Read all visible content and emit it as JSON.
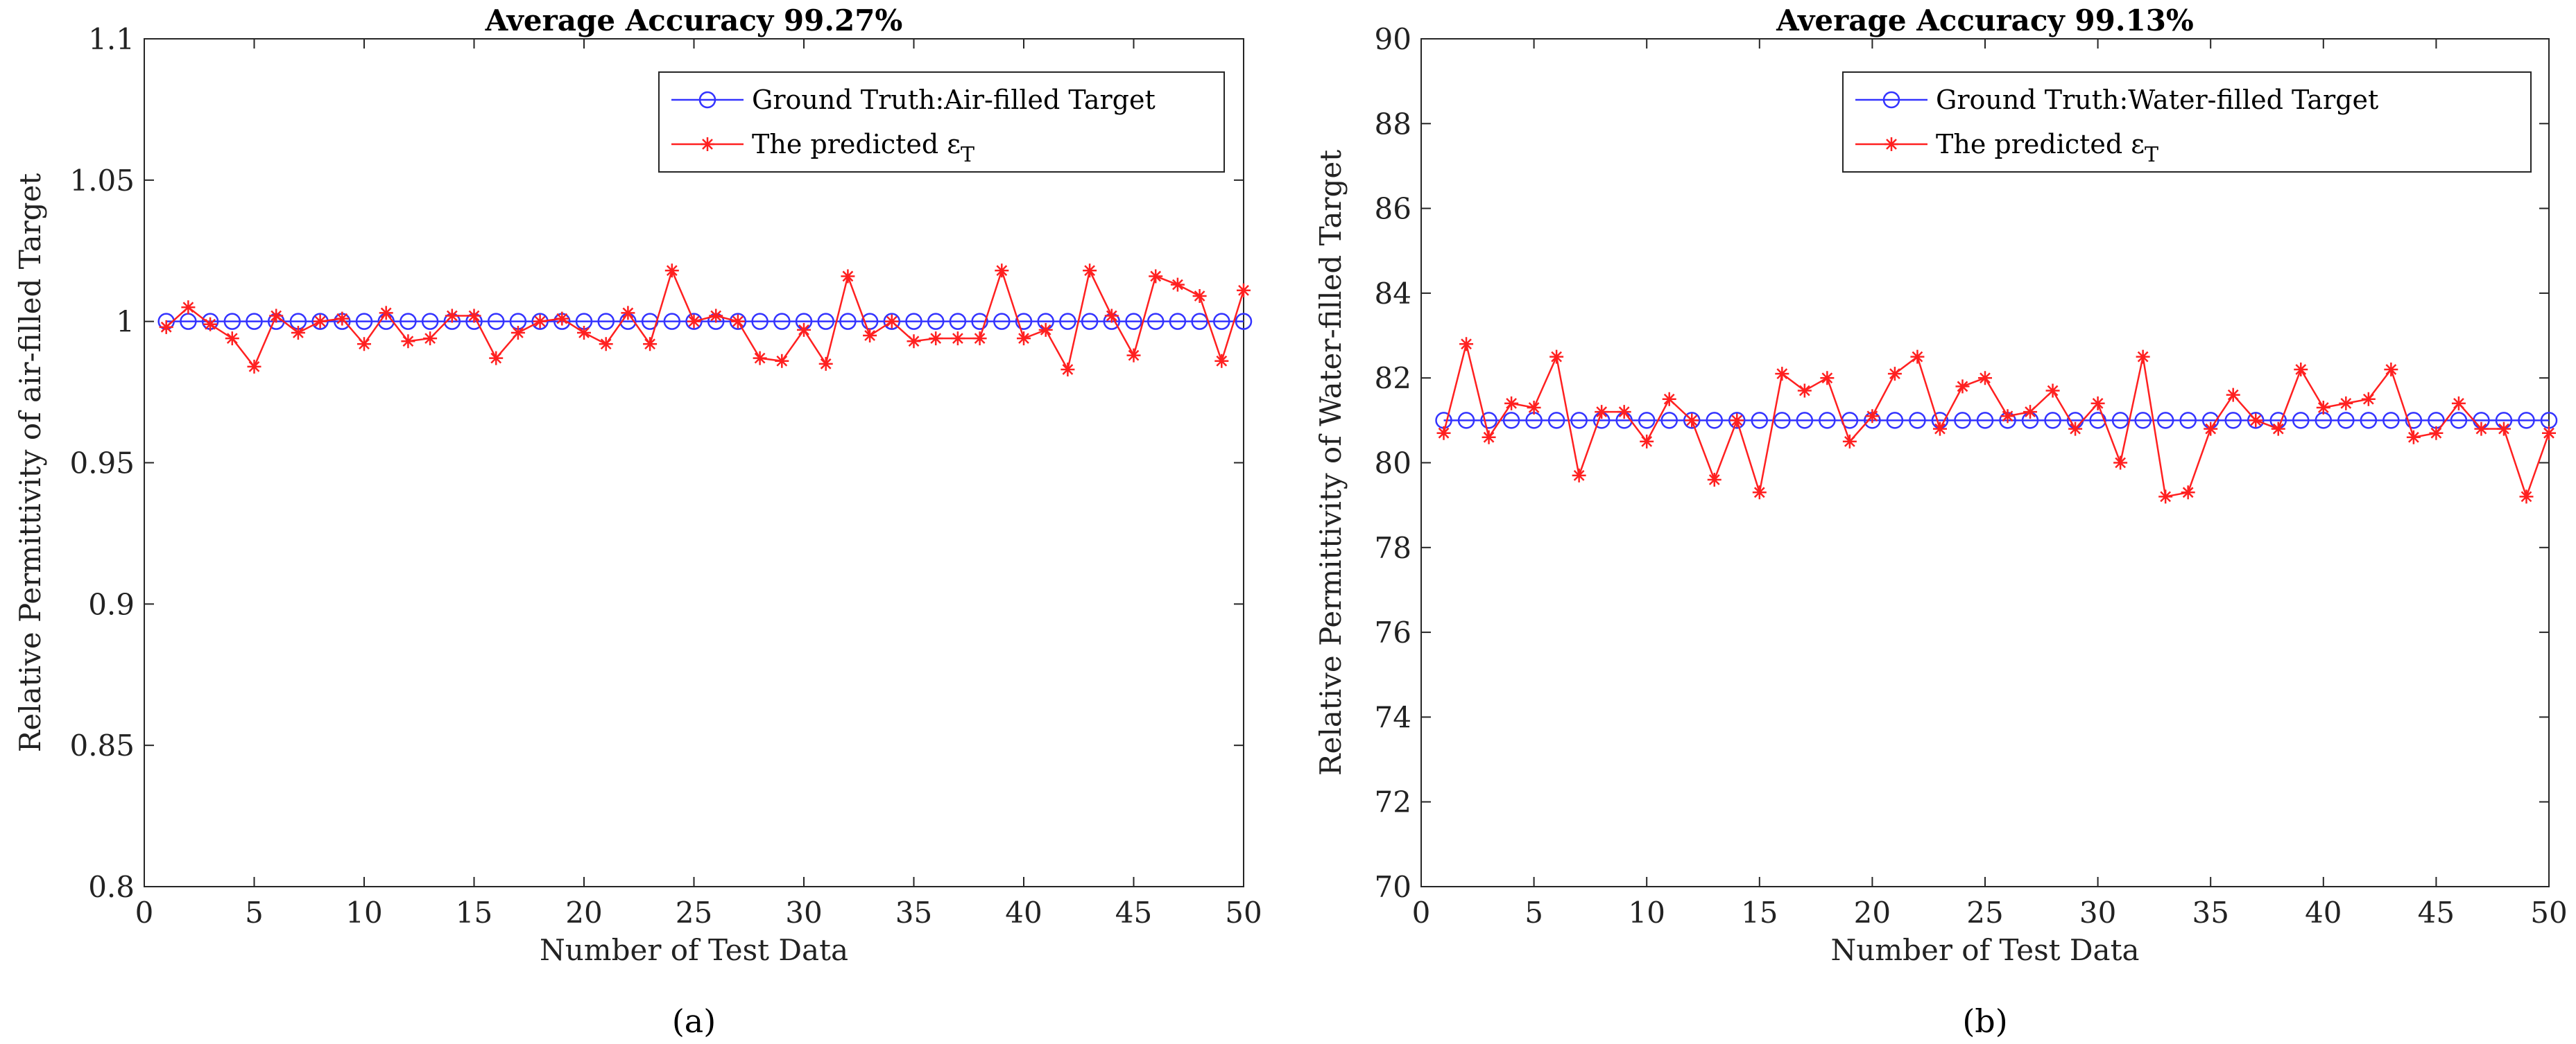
{
  "chart_data": [
    {
      "type": "line",
      "title": "Average Accuracy 99.27%",
      "xlabel": "Number of Test Data",
      "ylabel": "Relative Permittivity of air-filled Target",
      "caption": "(a)",
      "xlim": [
        0,
        50
      ],
      "ylim": [
        0.8,
        1.1
      ],
      "xticks": [
        0,
        5,
        10,
        15,
        20,
        25,
        30,
        35,
        40,
        45,
        50
      ],
      "yticks": [
        0.8,
        0.85,
        0.9,
        0.95,
        1,
        1.05,
        1.1
      ],
      "ytick_labels": [
        "0.8",
        "0.85",
        "0.9",
        "0.95",
        "1",
        "1.05",
        "1.1"
      ],
      "legend_position": "top-right",
      "x": [
        1,
        2,
        3,
        4,
        5,
        6,
        7,
        8,
        9,
        10,
        11,
        12,
        13,
        14,
        15,
        16,
        17,
        18,
        19,
        20,
        21,
        22,
        23,
        24,
        25,
        26,
        27,
        28,
        29,
        30,
        31,
        32,
        33,
        34,
        35,
        36,
        37,
        38,
        39,
        40,
        41,
        42,
        43,
        44,
        45,
        46,
        47,
        48,
        49,
        50
      ],
      "series": [
        {
          "name": "Ground Truth:Air-filled Target",
          "color": "#3333ff",
          "marker": "circle",
          "values": [
            1,
            1,
            1,
            1,
            1,
            1,
            1,
            1,
            1,
            1,
            1,
            1,
            1,
            1,
            1,
            1,
            1,
            1,
            1,
            1,
            1,
            1,
            1,
            1,
            1,
            1,
            1,
            1,
            1,
            1,
            1,
            1,
            1,
            1,
            1,
            1,
            1,
            1,
            1,
            1,
            1,
            1,
            1,
            1,
            1,
            1,
            1,
            1,
            1,
            1
          ]
        },
        {
          "name": "The predicted ε",
          "name_subscript": "T",
          "color": "#ff2020",
          "marker": "asterisk",
          "values": [
            0.998,
            1.005,
            0.999,
            0.994,
            0.984,
            1.002,
            0.996,
            1.0,
            1.001,
            0.992,
            1.003,
            0.993,
            0.994,
            1.002,
            1.002,
            0.987,
            0.996,
            1.0,
            1.001,
            0.996,
            0.992,
            1.003,
            0.992,
            1.018,
            1.0,
            1.002,
            1.0,
            0.987,
            0.986,
            0.997,
            0.985,
            1.016,
            0.995,
            1.0,
            0.993,
            0.994,
            0.994,
            0.994,
            1.018,
            0.994,
            0.997,
            0.983,
            1.018,
            1.002,
            0.988,
            1.016,
            1.013,
            1.009,
            0.986,
            1.011
          ]
        }
      ]
    },
    {
      "type": "line",
      "title": "Average Accuracy 99.13%",
      "xlabel": "Number of Test Data",
      "ylabel": "Relative Permittivity of Water-filled Target",
      "caption": "(b)",
      "xlim": [
        0,
        50
      ],
      "ylim": [
        70,
        90
      ],
      "xticks": [
        0,
        5,
        10,
        15,
        20,
        25,
        30,
        35,
        40,
        45,
        50
      ],
      "yticks": [
        70,
        72,
        74,
        76,
        78,
        80,
        82,
        84,
        86,
        88,
        90
      ],
      "ytick_labels": [
        "70",
        "72",
        "74",
        "76",
        "78",
        "80",
        "82",
        "84",
        "86",
        "88",
        "90"
      ],
      "legend_position": "top-right",
      "x": [
        1,
        2,
        3,
        4,
        5,
        6,
        7,
        8,
        9,
        10,
        11,
        12,
        13,
        14,
        15,
        16,
        17,
        18,
        19,
        20,
        21,
        22,
        23,
        24,
        25,
        26,
        27,
        28,
        29,
        30,
        31,
        32,
        33,
        34,
        35,
        36,
        37,
        38,
        39,
        40,
        41,
        42,
        43,
        44,
        45,
        46,
        47,
        48,
        49,
        50
      ],
      "series": [
        {
          "name": "Ground Truth:Water-filled Target",
          "color": "#3333ff",
          "marker": "circle",
          "values": [
            81,
            81,
            81,
            81,
            81,
            81,
            81,
            81,
            81,
            81,
            81,
            81,
            81,
            81,
            81,
            81,
            81,
            81,
            81,
            81,
            81,
            81,
            81,
            81,
            81,
            81,
            81,
            81,
            81,
            81,
            81,
            81,
            81,
            81,
            81,
            81,
            81,
            81,
            81,
            81,
            81,
            81,
            81,
            81,
            81,
            81,
            81,
            81,
            81,
            81
          ]
        },
        {
          "name": "The predicted ε",
          "name_subscript": "T",
          "color": "#ff2020",
          "marker": "asterisk",
          "values": [
            80.7,
            82.8,
            80.6,
            81.4,
            81.3,
            82.5,
            79.7,
            81.2,
            81.2,
            80.5,
            81.5,
            81.0,
            79.6,
            81.0,
            79.3,
            82.1,
            81.7,
            82.0,
            80.5,
            81.1,
            82.1,
            82.5,
            80.8,
            81.8,
            82.0,
            81.1,
            81.2,
            81.7,
            80.8,
            81.4,
            80.0,
            82.5,
            79.2,
            79.3,
            80.8,
            81.6,
            81.0,
            80.8,
            82.2,
            81.3,
            81.4,
            81.5,
            82.2,
            80.6,
            80.7,
            81.4,
            80.8,
            80.8,
            79.2,
            80.7
          ]
        }
      ]
    }
  ]
}
